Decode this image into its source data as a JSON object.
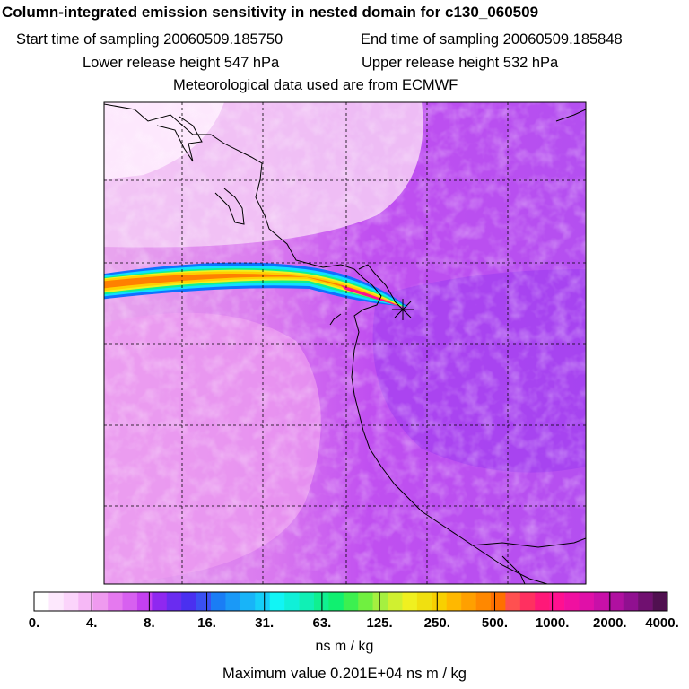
{
  "header": {
    "title": "Column-integrated emission sensitivity in nested domain for c130_060509",
    "start_label": "Start time of sampling 20060509.185750",
    "end_label": "End time of sampling 20060509.185848",
    "lower_label": "Lower release height  547 hPa",
    "upper_label": "Upper release height  532 hPa",
    "met_label": "Meteorological data used are from ECMWF"
  },
  "colorbar": {
    "ticks": [
      "0.",
      "4.",
      "8.",
      "16.",
      "31.",
      "63.",
      "125.",
      "250.",
      "500.",
      "1000.",
      "2000.",
      "4000."
    ],
    "colors": [
      "#ffffff",
      "#fde8fd",
      "#fbd4fb",
      "#f6b8f6",
      "#ef9aef",
      "#e579ef",
      "#d760f0",
      "#c440f0",
      "#8f28f0",
      "#6a2cf0",
      "#4a30f0",
      "#3a50f2",
      "#1a7df5",
      "#1a99f7",
      "#18b4f8",
      "#16cff9",
      "#11f5f5",
      "#10f0d8",
      "#10f0b5",
      "#10f090",
      "#10f070",
      "#3cf050",
      "#70f040",
      "#a5f040",
      "#d0f030",
      "#f0f020",
      "#f0e010",
      "#f8d000",
      "#ffb800",
      "#ffa000",
      "#ff8800",
      "#ff7000",
      "#ff5050",
      "#ff3060",
      "#ff1878",
      "#ff1090",
      "#f010a0",
      "#e010a8",
      "#c810a8",
      "#b010a0",
      "#901090",
      "#701070",
      "#501050"
    ],
    "units": "ns m / kg"
  },
  "footer": {
    "max_value": "Maximum value  0.201E+04 ns m / kg"
  },
  "map": {
    "plume_colors": [
      "#ff8000",
      "#ffd000",
      "#f0f020",
      "#10f090",
      "#10e0ff",
      "#1070ff"
    ],
    "release_marker": "release-point-star"
  }
}
